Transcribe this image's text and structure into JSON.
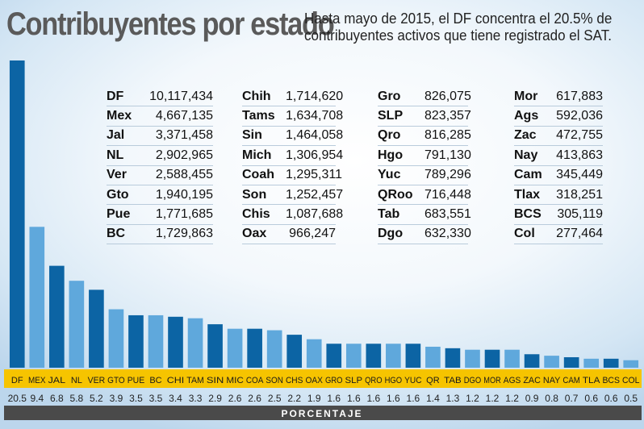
{
  "header": {
    "title": "Contribuyentes por estado",
    "subtitle": "Hasta mayo de 2015, el DF concentra el 20.5% de contribuyentes activos que tiene registrado el SAT."
  },
  "table": {
    "columns": [
      [
        {
          "state": "DF",
          "value": "10,117,434"
        },
        {
          "state": "Mex",
          "value": "4,667,135"
        },
        {
          "state": "Jal",
          "value": "3,371,458"
        },
        {
          "state": "NL",
          "value": "2,902,965"
        },
        {
          "state": "Ver",
          "value": "2,588,455"
        },
        {
          "state": "Gto",
          "value": "1,940,195"
        },
        {
          "state": "Pue",
          "value": "1,771,685"
        },
        {
          "state": "BC",
          "value": "1,729,863"
        }
      ],
      [
        {
          "state": "Chih",
          "value": "1,714,620"
        },
        {
          "state": "Tams",
          "value": "1,634,708"
        },
        {
          "state": "Sin",
          "value": "1,464,058"
        },
        {
          "state": "Mich",
          "value": "1,306,954"
        },
        {
          "state": "Coah",
          "value": "1,295,311"
        },
        {
          "state": "Son",
          "value": "1,252,457"
        },
        {
          "state": "Chis",
          "value": "1,087,688"
        },
        {
          "state": "Oax",
          "value": "966,247"
        }
      ],
      [
        {
          "state": "Gro",
          "value": "826,075"
        },
        {
          "state": "SLP",
          "value": "823,357"
        },
        {
          "state": "Qro",
          "value": "816,285"
        },
        {
          "state": "Hgo",
          "value": "791,130"
        },
        {
          "state": "Yuc",
          "value": "789,296"
        },
        {
          "state": "QRoo",
          "value": "716,448"
        },
        {
          "state": "Tab",
          "value": "683,551"
        },
        {
          "state": "Dgo",
          "value": "632,330"
        }
      ],
      [
        {
          "state": "Mor",
          "value": "617,883"
        },
        {
          "state": "Ags",
          "value": "592,036"
        },
        {
          "state": "Zac",
          "value": "472,755"
        },
        {
          "state": "Nay",
          "value": "413,863"
        },
        {
          "state": "Cam",
          "value": "345,449"
        },
        {
          "state": "Tlax",
          "value": "318,251"
        },
        {
          "state": "BCS",
          "value": "305,119"
        },
        {
          "state": "Col",
          "value": "277,464"
        }
      ]
    ]
  },
  "chart_data": {
    "type": "bar",
    "categories": [
      "DF",
      "MEX",
      "JAL",
      "NL",
      "VER",
      "GTO",
      "PUE",
      "BC",
      "CHI",
      "TAM",
      "SIN",
      "MIC",
      "COA",
      "SON",
      "CHS",
      "OAX",
      "GRO",
      "SLP",
      "QRO",
      "HGO",
      "YUC",
      "QR",
      "TAB",
      "DGO",
      "MOR",
      "AGS",
      "ZAC",
      "NAY",
      "CAM",
      "TLA",
      "BCS",
      "COL"
    ],
    "values": [
      20.5,
      9.4,
      6.8,
      5.8,
      5.2,
      3.9,
      3.5,
      3.5,
      3.4,
      3.3,
      2.9,
      2.6,
      2.6,
      2.5,
      2.2,
      1.9,
      1.6,
      1.6,
      1.6,
      1.6,
      1.6,
      1.4,
      1.3,
      1.2,
      1.2,
      1.2,
      0.9,
      0.8,
      0.7,
      0.6,
      0.6,
      0.5
    ],
    "value_labels": [
      "20.5",
      "9.4",
      "6.8",
      "5.8",
      "5.2",
      "3.9",
      "3.5",
      "3.5",
      "3.4",
      "3.3",
      "2.9",
      "2.6",
      "2.6",
      "2.5",
      "2.2",
      "1.9",
      "1.6",
      "1.6",
      "1.6",
      "1.6",
      "1.6",
      "1.4",
      "1.3",
      "1.2",
      "1.2",
      "1.2",
      "0.9",
      "0.8",
      "0.7",
      "0.6",
      "0.6",
      "0.5"
    ],
    "xlabel": "PORCENTAJE",
    "ylim": [
      0,
      20.5
    ],
    "grid": false,
    "colors": {
      "dark": "#0c64a4",
      "light": "#5fa8dc",
      "category_band": "#f6c400",
      "axis_band": "#4a4a4a"
    }
  }
}
